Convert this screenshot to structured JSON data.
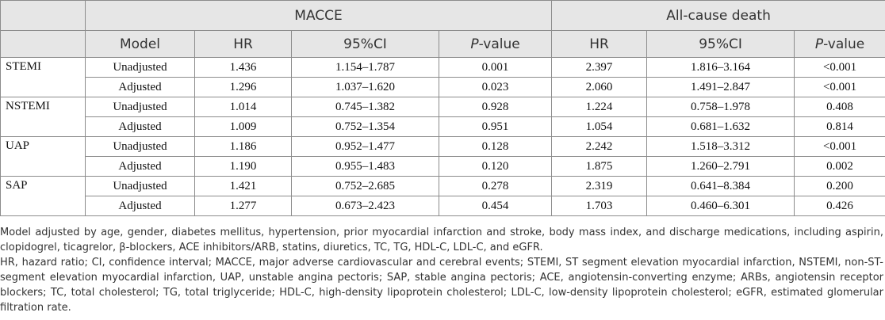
{
  "header": {
    "group1": "MACCE",
    "group2": "All-cause death",
    "col_model": "Model",
    "col_hr": "HR",
    "col_ci": "95%CI",
    "col_p_letter": "P",
    "col_p_rest": "-value"
  },
  "groups": [
    {
      "name": "STEMI",
      "rows": [
        {
          "model": "Unadjusted",
          "macce_hr": "1.436",
          "macce_ci": "1.154–1.787",
          "macce_p": "0.001",
          "death_hr": "2.397",
          "death_ci": "1.816–3.164",
          "death_p": "<0.001"
        },
        {
          "model": "Adjusted",
          "macce_hr": "1.296",
          "macce_ci": "1.037–1.620",
          "macce_p": "0.023",
          "death_hr": "2.060",
          "death_ci": "1.491–2.847",
          "death_p": "<0.001"
        }
      ]
    },
    {
      "name": "NSTEMI",
      "rows": [
        {
          "model": "Unadjusted",
          "macce_hr": "1.014",
          "macce_ci": "0.745–1.382",
          "macce_p": "0.928",
          "death_hr": "1.224",
          "death_ci": "0.758–1.978",
          "death_p": "0.408"
        },
        {
          "model": "Adjusted",
          "macce_hr": "1.009",
          "macce_ci": "0.752–1.354",
          "macce_p": "0.951",
          "death_hr": "1.054",
          "death_ci": "0.681–1.632",
          "death_p": "0.814"
        }
      ]
    },
    {
      "name": "UAP",
      "rows": [
        {
          "model": "Unadjusted",
          "macce_hr": "1.186",
          "macce_ci": "0.952–1.477",
          "macce_p": "0.128",
          "death_hr": "2.242",
          "death_ci": "1.518–3.312",
          "death_p": "<0.001"
        },
        {
          "model": "Adjusted",
          "macce_hr": "1.190",
          "macce_ci": "0.955–1.483",
          "macce_p": "0.120",
          "death_hr": "1.875",
          "death_ci": "1.260–2.791",
          "death_p": "0.002"
        }
      ]
    },
    {
      "name": "SAP",
      "rows": [
        {
          "model": "Unadjusted",
          "macce_hr": "1.421",
          "macce_ci": "0.752–2.685",
          "macce_p": "0.278",
          "death_hr": "2.319",
          "death_ci": "0.641–8.384",
          "death_p": "0.200"
        },
        {
          "model": "Adjusted",
          "macce_hr": "1.277",
          "macce_ci": "0.673–2.423",
          "macce_p": "0.454",
          "death_hr": "1.703",
          "death_ci": "0.460–6.301",
          "death_p": "0.426"
        }
      ]
    }
  ],
  "notes": {
    "adjustment": "Model adjusted by age, gender, diabetes mellitus, hypertension, prior myocardial infarction and stroke, body mass index, and discharge medications, including aspirin, clopidogrel, ticagrelor, β-blockers, ACE inhibitors/ARB, statins, diuretics, TC, TG, HDL-C, LDL-C, and eGFR.",
    "abbreviations": "HR, hazard ratio; CI, confidence interval; MACCE, major adverse cardiovascular and cerebral events; STEMI, ST segment elevation myocardial infarction, NSTEMI, non-ST-segment elevation myocardial infarction, UAP, unstable angina pectoris; SAP, stable angina pectoris; ACE, angiotensin-converting enzyme; ARBs, angiotensin receptor blockers; TC, total cholesterol; TG, total triglyceride; HDL-C, high-density lipoprotein cholesterol; LDL-C, low-density lipoprotein cholesterol; eGFR, estimated glomerular filtration rate."
  }
}
